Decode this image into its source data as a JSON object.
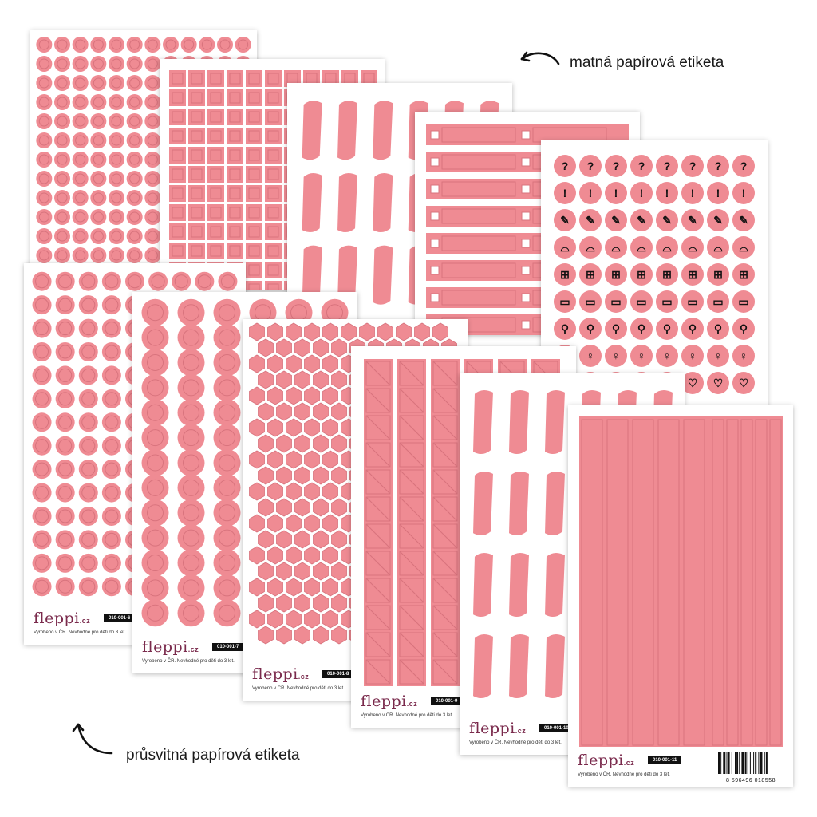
{
  "captions": {
    "top": "matná papírová etiketa",
    "bottom": "průsvitná papírová etiketa"
  },
  "colors": {
    "sticker": "#ef8b93",
    "sticker_dark": "#d8737d",
    "brand": "#7a2a4c"
  },
  "sheets": [
    {
      "brand": "fleppi",
      "tld": ".cz",
      "code": "010-001-6",
      "note": "Vyrobeno v ČR. Nevhodné pro děti do 3 let.",
      "shape": "small-circles"
    },
    {
      "brand": "fleppi",
      "tld": ".cz",
      "code": "010-001-7",
      "note": "Vyrobeno v ČR. Nevhodné pro děti do 3 let.",
      "shape": "large-circles"
    },
    {
      "brand": "fleppi",
      "tld": ".cz",
      "code": "010-001-8",
      "note": "Vyrobeno v ČR. Nevhodné pro děti do 3 let.",
      "shape": "hexagons"
    },
    {
      "brand": "fleppi",
      "tld": ".cz",
      "code": "010-001-9",
      "note": "Vyrobeno v ČR. Nevhodné pro děti do 3 let.",
      "shape": "triangle-strips"
    },
    {
      "brand": "fleppi",
      "tld": ".cz",
      "code": "010-001-10",
      "note": "Vyrobeno v ČR. Nevhodné pro děti do 3 let.",
      "shape": "brush-strokes"
    },
    {
      "brand": "fleppi",
      "tld": ".cz",
      "code": "010-001-11",
      "note": "Vyrobeno v ČR. Nevhodné pro děti do 3 let.",
      "shape": "long-strips",
      "barcode": "8 596496 018558"
    }
  ],
  "icon_sheet_rows": [
    "?",
    "!",
    "pencil-icon",
    "shoe-icon",
    "gift-icon",
    "wallet-icon",
    "pin-icon",
    "wine-icon",
    "heart-icon"
  ]
}
